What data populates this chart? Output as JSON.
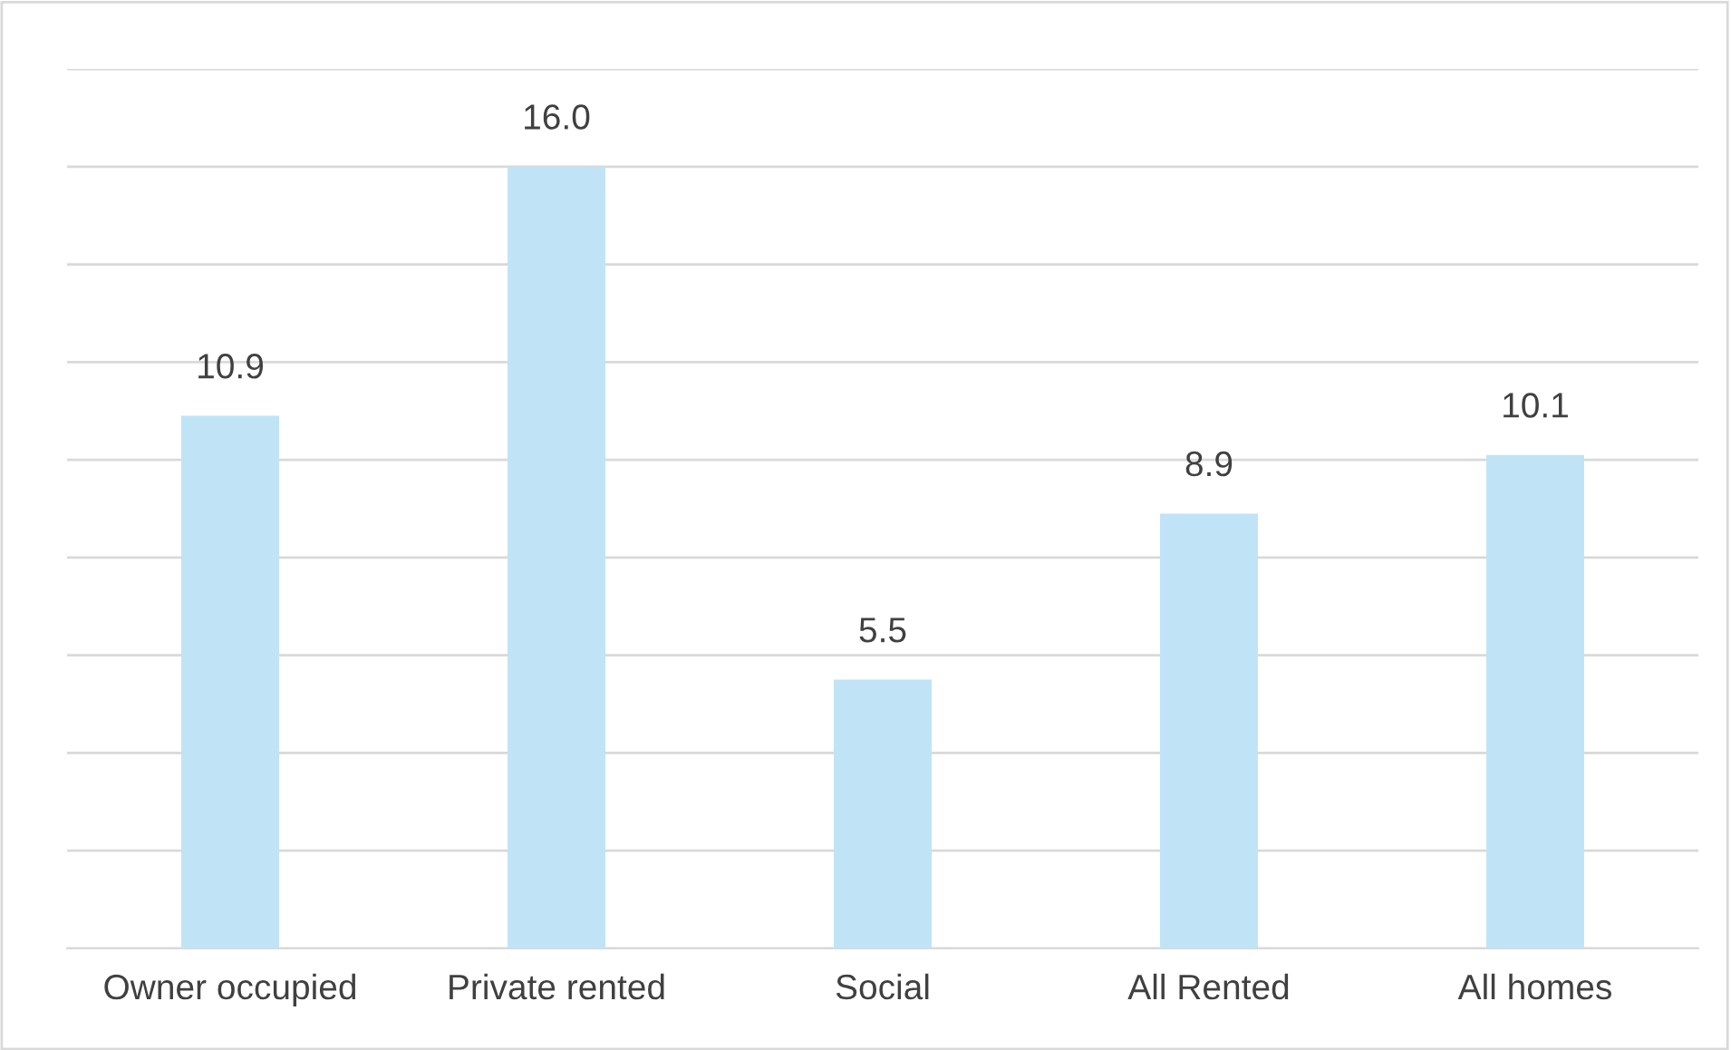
{
  "chart_data": {
    "type": "bar",
    "categories": [
      "Owner occupied",
      "Private rented",
      "Social",
      "All Rented",
      "All homes"
    ],
    "values": [
      10.9,
      16.0,
      5.5,
      8.9,
      10.1
    ],
    "color": "#c0e4f5",
    "ylim": [
      0,
      18
    ],
    "yticks": [
      {
        "value": 0,
        "label": null
      },
      {
        "value": 2,
        "label": null
      },
      {
        "value": 4,
        "label": null
      },
      {
        "value": 6,
        "label": null
      },
      {
        "value": 8,
        "label": null
      },
      {
        "value": 10,
        "label": null
      },
      {
        "value": 12,
        "label": null
      },
      {
        "value": 14,
        "label": null
      },
      {
        "value": 16,
        "label": null
      },
      {
        "value": 18,
        "label": null
      }
    ],
    "grid": "y",
    "tick_labels": "x",
    "data_labels": true,
    "value_labels": [
      "10.9",
      "16.0",
      "5.5",
      "8.9",
      "10.1"
    ]
  }
}
